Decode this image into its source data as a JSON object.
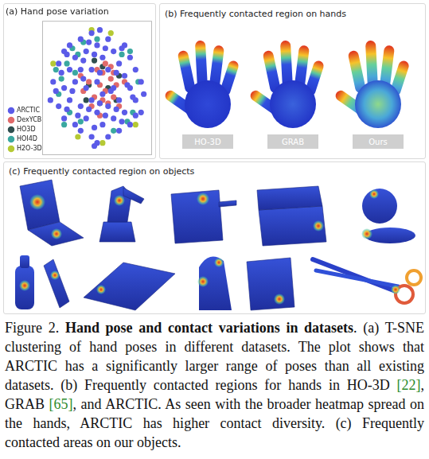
{
  "chart_data": {
    "type": "scatter",
    "title": "(a) Hand pose variation",
    "series": [
      {
        "name": "ARCTIC",
        "color": "#5b5be8",
        "x": [
          -8,
          -7,
          -7,
          -6,
          -6,
          -6,
          -5,
          -5,
          -5,
          -4,
          -4,
          -4,
          -3,
          -3,
          -3,
          -3,
          -2,
          -2,
          -2,
          -1,
          -1,
          -1,
          -1,
          0,
          0,
          0,
          0,
          1,
          1,
          1,
          2,
          2,
          2,
          2,
          3,
          3,
          3,
          4,
          4,
          4,
          5,
          5,
          5,
          6,
          6,
          6,
          7,
          7,
          8,
          8,
          -7.5,
          -6.5,
          -5.5,
          -5.5,
          -4.5,
          -3.5,
          -2.5,
          -2.5,
          -1.5,
          -1.5,
          -0.5,
          -0.5,
          0.5,
          0.5,
          1.5,
          1.5,
          2.5,
          3.5,
          3.5,
          4.5,
          4.5,
          5.5,
          6.5,
          7,
          -8.5,
          8.5,
          -0.5,
          0.5
        ],
        "values": [
          1,
          4,
          -3,
          6,
          0,
          -5,
          3,
          -2,
          7,
          -6,
          5,
          1,
          8,
          -3,
          3,
          -7,
          6,
          0,
          -5,
          9,
          3,
          -2,
          -8,
          7,
          1,
          -4,
          -9,
          5,
          -1,
          -6,
          8,
          3,
          -3,
          -8,
          6,
          0,
          -5,
          4,
          -2,
          -7,
          7,
          2,
          -4,
          5,
          0,
          -6,
          3,
          -2,
          1,
          -4,
          -0.5,
          2.5,
          5.5,
          -3.5,
          -0.5,
          -4.5,
          1.5,
          4.5,
          -3.5,
          7.5,
          5.5,
          -6.5,
          2.5,
          -2.5,
          6.5,
          -4.5,
          -0.5,
          2.5,
          -3.5,
          6.5,
          -5.5,
          0.5,
          -1.5,
          -4.5,
          -2,
          -1,
          -9.5,
          9.5
        ]
      },
      {
        "name": "DexYCB",
        "color": "#e06a6a",
        "x": [
          0.5,
          1.5,
          2.5,
          -0.5,
          1,
          3,
          -1.5,
          2,
          0,
          3.5,
          -1,
          1.5,
          4,
          -2.5,
          2.5,
          0.5,
          5,
          -3,
          1,
          3
        ],
        "values": [
          0.5,
          -0.5,
          1.5,
          -1.5,
          2.5,
          -1.5,
          1,
          -2.5,
          3,
          0.5,
          -3,
          4,
          -3,
          -0.5,
          3.5,
          -4.5,
          1,
          2,
          -2,
          2.5
        ]
      },
      {
        "name": "HO3D",
        "color": "#2f4f4f",
        "x": [
          -1.5,
          0.5,
          2,
          -2,
          1,
          3.5,
          -0.5,
          4
        ],
        "values": [
          0.5,
          -2.5,
          0,
          -2,
          3.5,
          -2,
          4.5,
          2
        ]
      },
      {
        "name": "HOI4D",
        "color": "#3aa8a0",
        "x": [
          -5.5,
          -4.5,
          -6.5,
          -3.5,
          -7,
          -5,
          6.5,
          5.5,
          -2.5,
          3,
          7.5,
          -6,
          -3,
          4.5,
          -7.5,
          6,
          0,
          -4
        ],
        "values": [
          4,
          6.5,
          1.5,
          5.5,
          -1,
          -4,
          -4,
          -5.5,
          7.5,
          -7,
          1,
          -6,
          -5.5,
          5.5,
          3,
          6,
          8,
          2.5
        ]
      },
      {
        "name": "H2O-3D",
        "color": "#b5c934",
        "x": [
          -1,
          1,
          -3.5,
          7,
          -8,
          2.5
        ],
        "values": [
          9.5,
          -9,
          -8,
          -6,
          4,
          9
        ]
      }
    ],
    "xlim": [
      -10,
      10
    ],
    "ylim": [
      -11,
      11
    ],
    "tick_labels": false,
    "grid": false,
    "legend": "lower left"
  },
  "panel_b": {
    "title": "(b) Frequently contacted region on hands",
    "labels": [
      "HO-3D",
      "GRAB",
      "Ours"
    ]
  },
  "panel_c": {
    "title": "(c) Frequently contacted region on objects"
  },
  "caption": [
    {
      "text": "Figure 2. "
    },
    {
      "text": "Hand pose and contact variations in datasets",
      "bold": true
    },
    {
      "text": ". (a) T-SNE clustering of hand poses in different datasets. The plot shows that ARCTIC has a significantly larger range of poses than all existing datasets. (b) Frequently contacted regions for hands in HO-3D "
    },
    {
      "text": "[22]",
      "cite": true
    },
    {
      "text": ", GRAB "
    },
    {
      "text": "[65]",
      "cite": true
    },
    {
      "text": ", and ARCTIC. As seen with the broader heatmap spread on the hands, ARCTIC has higher contact diversity. (c) Frequently contacted areas on our objects."
    }
  ]
}
